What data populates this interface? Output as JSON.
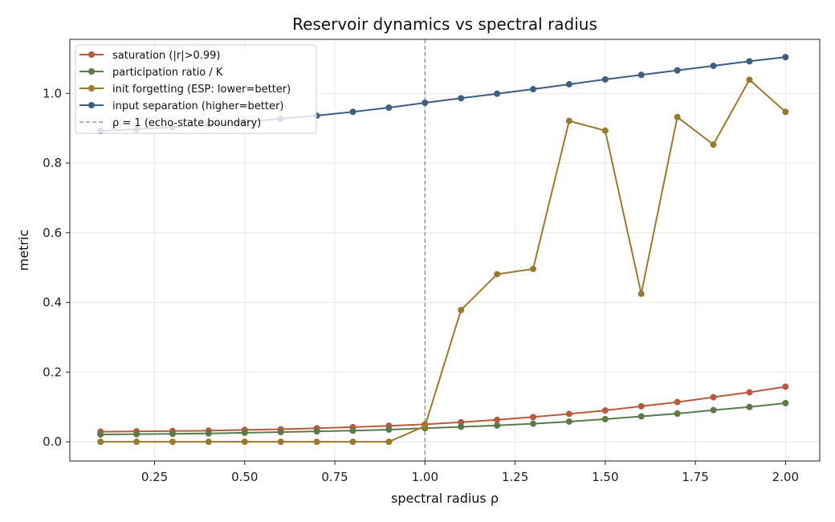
{
  "chart_data": {
    "type": "line",
    "title": "Reservoir dynamics vs spectral radius",
    "xlabel": "spectral radius ρ",
    "ylabel": "metric",
    "xlim": [
      0.015,
      2.095
    ],
    "ylim": [
      -0.055,
      1.155
    ],
    "xticks": [
      0.25,
      0.5,
      0.75,
      1.0,
      1.25,
      1.5,
      1.75,
      2.0
    ],
    "xtick_labels": [
      "0.25",
      "0.50",
      "0.75",
      "1.00",
      "1.25",
      "1.50",
      "1.75",
      "2.00"
    ],
    "yticks": [
      0.0,
      0.2,
      0.4,
      0.6,
      0.8,
      1.0
    ],
    "ytick_labels": [
      "0.0",
      "0.2",
      "0.4",
      "0.6",
      "0.8",
      "1.0"
    ],
    "grid": true,
    "legend_position": "top-left",
    "x": [
      0.1,
      0.2,
      0.3,
      0.4,
      0.5,
      0.6,
      0.7,
      0.8,
      0.9,
      1.0,
      1.1,
      1.2,
      1.3,
      1.4,
      1.5,
      1.6,
      1.7,
      1.8,
      1.9,
      2.0
    ],
    "series": [
      {
        "name": "saturation (|r|>0.99)",
        "color": "#b85a3e",
        "values": [
          0.029,
          0.03,
          0.031,
          0.032,
          0.034,
          0.036,
          0.039,
          0.042,
          0.046,
          0.05,
          0.056,
          0.063,
          0.071,
          0.08,
          0.09,
          0.102,
          0.114,
          0.128,
          0.142,
          0.158
        ]
      },
      {
        "name": "participation ratio / K",
        "color": "#5a7a4a",
        "values": [
          0.021,
          0.022,
          0.023,
          0.024,
          0.026,
          0.028,
          0.03,
          0.032,
          0.035,
          0.039,
          0.043,
          0.047,
          0.052,
          0.058,
          0.065,
          0.073,
          0.081,
          0.091,
          0.1,
          0.111
        ]
      },
      {
        "name": "init forgetting (ESP: lower=better)",
        "color": "#9a7a2e",
        "values": [
          0.0,
          0.0,
          0.0,
          0.0,
          0.0,
          0.0,
          0.0,
          0.0,
          0.0,
          0.045,
          0.378,
          0.481,
          0.496,
          0.921,
          0.893,
          0.425,
          0.932,
          0.853,
          1.039,
          0.947
        ]
      },
      {
        "name": "input separation (higher=better)",
        "color": "#3d5f82",
        "values": [
          0.892,
          0.897,
          0.903,
          0.91,
          0.918,
          0.927,
          0.936,
          0.947,
          0.959,
          0.973,
          0.986,
          0.999,
          1.012,
          1.026,
          1.04,
          1.053,
          1.066,
          1.079,
          1.092,
          1.104
        ]
      }
    ],
    "reference_line": {
      "label": "ρ = 1 (echo-state boundary)",
      "x": 1.0,
      "color": "#999999"
    }
  }
}
